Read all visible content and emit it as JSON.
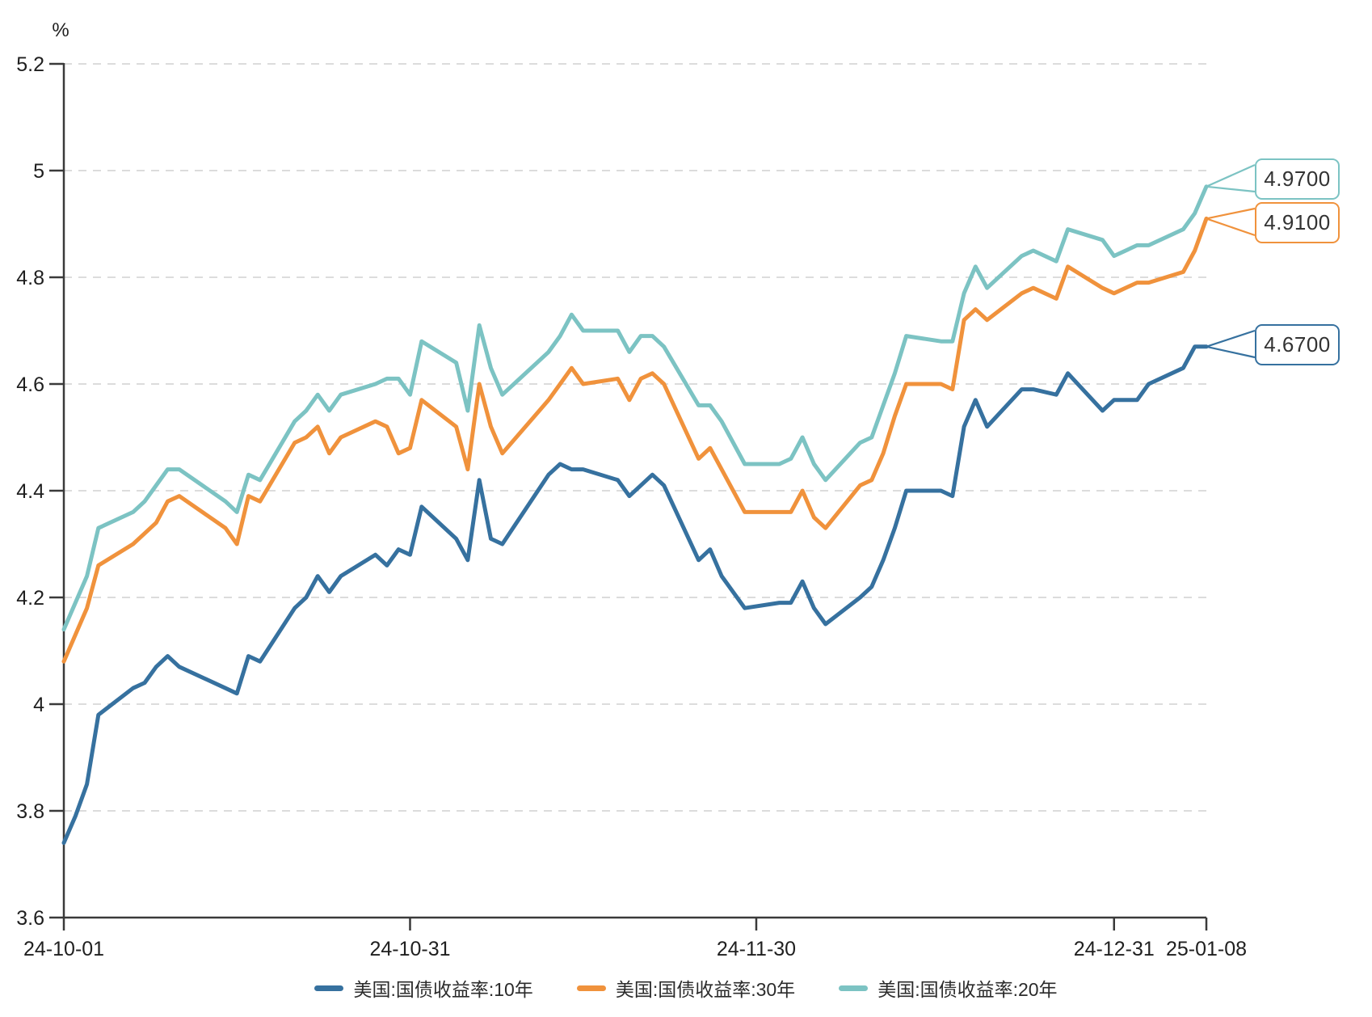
{
  "chart_data": {
    "type": "line",
    "unit_label": "%",
    "ylim": [
      3.6,
      5.2
    ],
    "grid": "dashed-horizontal",
    "legend_position": "bottom",
    "y_ticks": [
      {
        "label": "5.2",
        "value": 5.2
      },
      {
        "label": "5",
        "value": 5.0
      },
      {
        "label": "4.8",
        "value": 4.8
      },
      {
        "label": "4.6",
        "value": 4.6
      },
      {
        "label": "4.4",
        "value": 4.4
      },
      {
        "label": "4.2",
        "value": 4.2
      },
      {
        "label": "4",
        "value": 4.0
      },
      {
        "label": "3.8",
        "value": 3.8
      },
      {
        "label": "3.6",
        "value": 3.6
      }
    ],
    "x_ticks": [
      {
        "label": "24-10-01",
        "day": 0
      },
      {
        "label": "24-10-31",
        "day": 30
      },
      {
        "label": "24-11-30",
        "day": 60
      },
      {
        "label": "24-12-31",
        "day": 91
      },
      {
        "label": "25-01-08",
        "day": 99
      }
    ],
    "dates": [
      "24-10-01",
      "24-10-02",
      "24-10-03",
      "24-10-04",
      "24-10-07",
      "24-10-08",
      "24-10-09",
      "24-10-10",
      "24-10-11",
      "24-10-15",
      "24-10-16",
      "24-10-17",
      "24-10-18",
      "24-10-21",
      "24-10-22",
      "24-10-23",
      "24-10-24",
      "24-10-25",
      "24-10-28",
      "24-10-29",
      "24-10-30",
      "24-10-31",
      "24-11-01",
      "24-11-04",
      "24-11-05",
      "24-11-06",
      "24-11-07",
      "24-11-08",
      "24-11-12",
      "24-11-13",
      "24-11-14",
      "24-11-15",
      "24-11-18",
      "24-11-19",
      "24-11-20",
      "24-11-21",
      "24-11-22",
      "24-11-25",
      "24-11-26",
      "24-11-27",
      "24-11-29",
      "24-12-02",
      "24-12-03",
      "24-12-04",
      "24-12-05",
      "24-12-06",
      "24-12-09",
      "24-12-10",
      "24-12-11",
      "24-12-12",
      "24-12-13",
      "24-12-16",
      "24-12-17",
      "24-12-18",
      "24-12-19",
      "24-12-20",
      "24-12-23",
      "24-12-24",
      "24-12-26",
      "24-12-27",
      "24-12-30",
      "24-12-31",
      "25-01-02",
      "25-01-03",
      "25-01-06",
      "25-01-07",
      "25-01-08"
    ],
    "day_offsets": [
      0,
      1,
      2,
      3,
      6,
      7,
      8,
      9,
      10,
      14,
      15,
      16,
      17,
      20,
      21,
      22,
      23,
      24,
      27,
      28,
      29,
      30,
      31,
      34,
      35,
      36,
      37,
      38,
      42,
      43,
      44,
      45,
      48,
      49,
      50,
      51,
      52,
      55,
      56,
      57,
      59,
      62,
      63,
      64,
      65,
      66,
      69,
      70,
      71,
      72,
      73,
      76,
      77,
      78,
      79,
      80,
      83,
      84,
      86,
      87,
      90,
      91,
      93,
      94,
      97,
      98,
      99
    ],
    "series": [
      {
        "name": "美国:国债收益率:10年",
        "color": "#36719f",
        "end_label": "4.6700",
        "values": [
          3.74,
          3.79,
          3.85,
          3.98,
          4.03,
          4.04,
          4.07,
          4.09,
          4.07,
          4.03,
          4.02,
          4.09,
          4.08,
          4.18,
          4.2,
          4.24,
          4.21,
          4.24,
          4.28,
          4.26,
          4.29,
          4.28,
          4.37,
          4.31,
          4.27,
          4.42,
          4.31,
          4.3,
          4.43,
          4.45,
          4.44,
          4.44,
          4.42,
          4.39,
          4.41,
          4.43,
          4.41,
          4.27,
          4.29,
          4.24,
          4.18,
          4.19,
          4.19,
          4.23,
          4.18,
          4.15,
          4.2,
          4.22,
          4.27,
          4.33,
          4.4,
          4.4,
          4.39,
          4.52,
          4.57,
          4.52,
          4.59,
          4.59,
          4.58,
          4.62,
          4.55,
          4.57,
          4.57,
          4.6,
          4.63,
          4.67,
          4.67
        ]
      },
      {
        "name": "美国:国债收益率:30年",
        "color": "#f0923c",
        "end_label": "4.9100",
        "values": [
          4.08,
          4.13,
          4.18,
          4.26,
          4.3,
          4.32,
          4.34,
          4.38,
          4.39,
          4.33,
          4.3,
          4.39,
          4.38,
          4.49,
          4.5,
          4.52,
          4.47,
          4.5,
          4.53,
          4.52,
          4.47,
          4.48,
          4.57,
          4.52,
          4.44,
          4.6,
          4.52,
          4.47,
          4.57,
          4.6,
          4.63,
          4.6,
          4.61,
          4.57,
          4.61,
          4.62,
          4.6,
          4.46,
          4.48,
          4.44,
          4.36,
          4.36,
          4.36,
          4.4,
          4.35,
          4.33,
          4.41,
          4.42,
          4.47,
          4.54,
          4.6,
          4.6,
          4.59,
          4.72,
          4.74,
          4.72,
          4.77,
          4.78,
          4.76,
          4.82,
          4.78,
          4.77,
          4.79,
          4.79,
          4.81,
          4.85,
          4.91
        ]
      },
      {
        "name": "美国:国债收益率:20年",
        "color": "#7cc3c3",
        "end_label": "4.9700",
        "values": [
          4.14,
          4.19,
          4.24,
          4.33,
          4.36,
          4.38,
          4.41,
          4.44,
          4.44,
          4.38,
          4.36,
          4.43,
          4.42,
          4.53,
          4.55,
          4.58,
          4.55,
          4.58,
          4.6,
          4.61,
          4.61,
          4.58,
          4.68,
          4.64,
          4.55,
          4.71,
          4.63,
          4.58,
          4.66,
          4.69,
          4.73,
          4.7,
          4.7,
          4.66,
          4.69,
          4.69,
          4.67,
          4.56,
          4.56,
          4.53,
          4.45,
          4.45,
          4.46,
          4.5,
          4.45,
          4.42,
          4.49,
          4.5,
          4.56,
          4.62,
          4.69,
          4.68,
          4.68,
          4.77,
          4.82,
          4.78,
          4.84,
          4.85,
          4.83,
          4.89,
          4.87,
          4.84,
          4.86,
          4.86,
          4.89,
          4.92,
          4.97
        ]
      }
    ],
    "callouts": [
      {
        "series_index": 2,
        "label": "4.9700"
      },
      {
        "series_index": 1,
        "label": "4.9100"
      },
      {
        "series_index": 0,
        "label": "4.6700"
      }
    ],
    "colors": {
      "axis": "#3a3a3a",
      "grid": "#dcdcdc",
      "tick_text": "#1f1f1f",
      "callout_text": "#333333"
    }
  }
}
